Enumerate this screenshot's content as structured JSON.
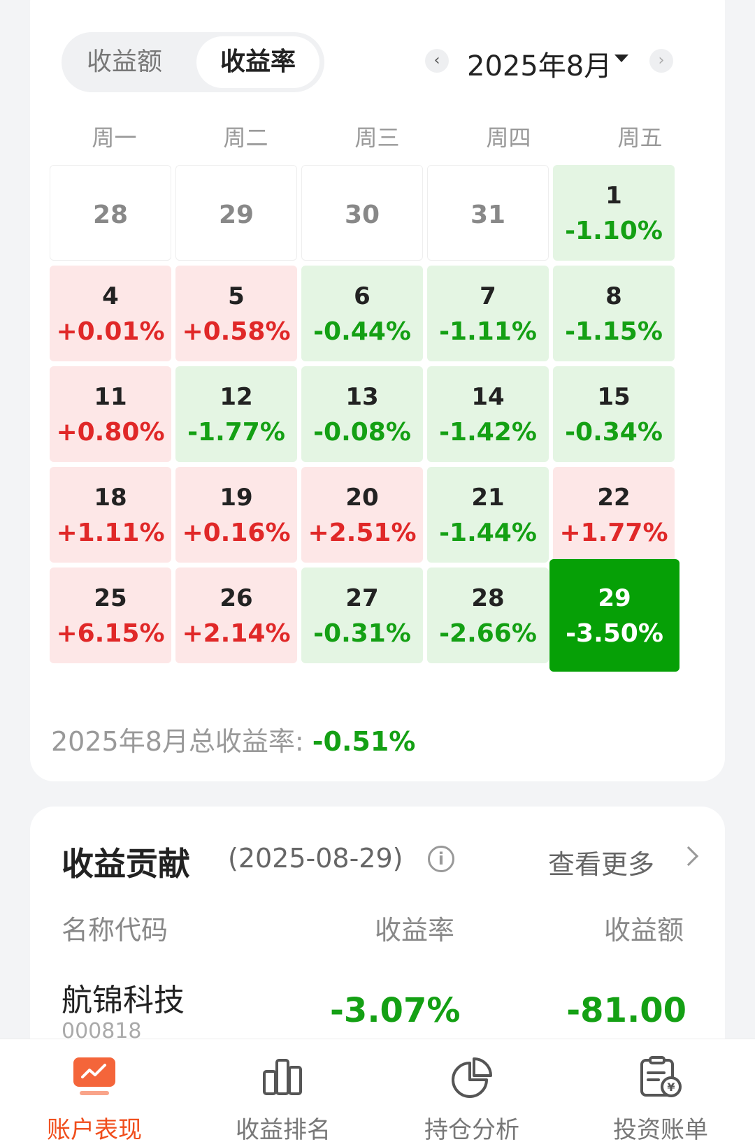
{
  "toggle": {
    "amount_label": "收益额",
    "rate_label": "收益率"
  },
  "month": {
    "label": "2025年8月",
    "prev": "‹",
    "next": "›"
  },
  "weekdays": [
    "周一",
    "周二",
    "周三",
    "周四",
    "周五"
  ],
  "cells": [
    {
      "day": "28",
      "pct": "",
      "kind": "empty"
    },
    {
      "day": "29",
      "pct": "",
      "kind": "empty"
    },
    {
      "day": "30",
      "pct": "",
      "kind": "empty"
    },
    {
      "day": "31",
      "pct": "",
      "kind": "empty"
    },
    {
      "day": "1",
      "pct": "-1.10%",
      "kind": "down"
    },
    {
      "day": "4",
      "pct": "+0.01%",
      "kind": "up"
    },
    {
      "day": "5",
      "pct": "+0.58%",
      "kind": "up"
    },
    {
      "day": "6",
      "pct": "-0.44%",
      "kind": "down"
    },
    {
      "day": "7",
      "pct": "-1.11%",
      "kind": "down"
    },
    {
      "day": "8",
      "pct": "-1.15%",
      "kind": "down"
    },
    {
      "day": "11",
      "pct": "+0.80%",
      "kind": "up"
    },
    {
      "day": "12",
      "pct": "-1.77%",
      "kind": "down"
    },
    {
      "day": "13",
      "pct": "-0.08%",
      "kind": "down"
    },
    {
      "day": "14",
      "pct": "-1.42%",
      "kind": "down"
    },
    {
      "day": "15",
      "pct": "-0.34%",
      "kind": "down"
    },
    {
      "day": "18",
      "pct": "+1.11%",
      "kind": "up"
    },
    {
      "day": "19",
      "pct": "+0.16%",
      "kind": "up"
    },
    {
      "day": "20",
      "pct": "+2.51%",
      "kind": "up"
    },
    {
      "day": "21",
      "pct": "-1.44%",
      "kind": "down"
    },
    {
      "day": "22",
      "pct": "+1.77%",
      "kind": "up"
    },
    {
      "day": "25",
      "pct": "+6.15%",
      "kind": "up"
    },
    {
      "day": "26",
      "pct": "+2.14%",
      "kind": "up"
    },
    {
      "day": "27",
      "pct": "-0.31%",
      "kind": "down"
    },
    {
      "day": "28",
      "pct": "-2.66%",
      "kind": "down"
    },
    {
      "day": "29",
      "pct": "-3.50%",
      "kind": "selected"
    }
  ],
  "total": {
    "label": "2025年8月总收益率: ",
    "value": "-0.51%"
  },
  "contribution": {
    "title": "收益贡献",
    "date": "(2025-08-29)",
    "info_icon": "i",
    "more": "查看更多",
    "columns": {
      "name": "名称代码",
      "rate": "收益率",
      "amount": "收益额"
    },
    "rows": [
      {
        "name": "航锦科技",
        "code": "000818",
        "rate": "-3.07%",
        "amount": "-81.00"
      }
    ]
  },
  "nav": [
    {
      "label": "账户表现",
      "icon": "performance-icon",
      "active": true
    },
    {
      "label": "收益排名",
      "icon": "ranking-icon",
      "active": false
    },
    {
      "label": "持仓分析",
      "icon": "pie-chart-icon",
      "active": false
    },
    {
      "label": "投资账单",
      "icon": "bill-icon",
      "active": false
    }
  ],
  "colors": {
    "accent": "#f04e1c",
    "up": "#e02828",
    "down": "#14a014",
    "selected": "#06a006"
  }
}
